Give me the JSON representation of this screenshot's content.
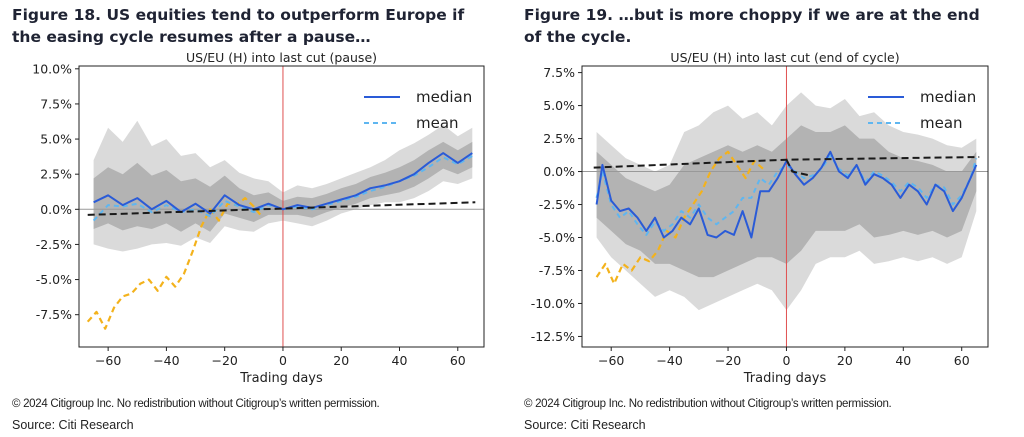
{
  "panels": [
    {
      "figure_title": "Figure 18. US equities tend to outperform Europe if the easing cycle resumes after a pause…",
      "copyright": "© 2024 Citigroup Inc. No redistribution without Citigroup’s written permission.",
      "source": "Source: Citi Research"
    },
    {
      "figure_title": "Figure 19. …but is more choppy if we are at the end of the cycle.",
      "copyright": "© 2024 Citigroup Inc. No redistribution without Citigroup’s written permission.",
      "source": "Source: Citi Research"
    }
  ],
  "colors": {
    "median": "#2a5bd7",
    "mean": "#5fb6f0",
    "y2024": "#f3b21c",
    "trend": "#1a1a1a",
    "zero_line": "#999999",
    "vline": "#e05050",
    "band_outer": "#d4d4d4",
    "band_inner": "#a9a9a9"
  },
  "chart_data": [
    {
      "type": "line",
      "title": "US/EU (H) into last cut (pause)",
      "xlabel": "Trading days",
      "ylabel": "",
      "xlim": [
        -70,
        69
      ],
      "ylim": [
        -9.8,
        10.2
      ],
      "xticks": [
        -60,
        -40,
        -20,
        0,
        20,
        40,
        60
      ],
      "xtick_labels": [
        "−60",
        "−40",
        "−20",
        "0",
        "20",
        "40",
        "60"
      ],
      "yticks": [
        -7.5,
        -5,
        -2.5,
        0,
        2.5,
        5,
        7.5,
        10
      ],
      "ytick_labels": [
        "-7.5%",
        "-5.0%",
        "-2.5%",
        "0.0%",
        "2.5%",
        "5.0%",
        "7.5%",
        "10.0%"
      ],
      "legend": {
        "position": "top-right",
        "entries": [
          {
            "label": "median",
            "style": "solid",
            "color": "#2a5bd7"
          },
          {
            "label": "mean",
            "style": "dashed",
            "color": "#5fb6f0"
          }
        ]
      },
      "series": [
        {
          "name": "median",
          "style": "solid",
          "x": [
            -65,
            -60,
            -55,
            -50,
            -45,
            -40,
            -35,
            -30,
            -25,
            -20,
            -15,
            -10,
            -5,
            0,
            5,
            10,
            15,
            20,
            25,
            30,
            35,
            40,
            45,
            50,
            55,
            60,
            65
          ],
          "y": [
            0.5,
            1.0,
            0.3,
            0.8,
            0.0,
            0.6,
            -0.2,
            0.4,
            -0.3,
            1.0,
            0.3,
            0.0,
            0.4,
            0.0,
            0.3,
            0.1,
            0.4,
            0.7,
            1.0,
            1.5,
            1.7,
            2.0,
            2.5,
            3.3,
            4.0,
            3.3,
            4.0
          ]
        },
        {
          "name": "mean",
          "style": "dashed",
          "x": [
            -65,
            -60,
            -55,
            -50,
            -45,
            -40,
            -35,
            -30,
            -25,
            -20,
            -15,
            -10,
            -5,
            0,
            5,
            10,
            15,
            20,
            25,
            30,
            35,
            40,
            45,
            50,
            55,
            60,
            65
          ],
          "y": [
            -0.8,
            0.3,
            0.2,
            0.4,
            -0.2,
            0.3,
            -0.2,
            0.0,
            -0.5,
            0.6,
            0.2,
            -0.2,
            0.3,
            0.0,
            0.2,
            0.0,
            0.3,
            0.6,
            0.9,
            1.3,
            1.6,
            2.0,
            2.4,
            3.0,
            3.7,
            3.2,
            3.8
          ]
        },
        {
          "name": "",
          "style": "dashed-orange",
          "x": [
            -67,
            -64,
            -61,
            -58,
            -55,
            -52,
            -49,
            -46,
            -43,
            -40,
            -37,
            -34,
            -31,
            -28,
            -25,
            -22,
            -19,
            -16,
            -13,
            -10,
            -7
          ],
          "y": [
            -8.0,
            -7.3,
            -8.5,
            -7.0,
            -6.2,
            -6.0,
            -5.3,
            -5.0,
            -5.8,
            -4.8,
            -5.5,
            -4.6,
            -3.0,
            -1.2,
            0.0,
            -0.8,
            0.4,
            0.3,
            0.8,
            0.2,
            -0.6
          ]
        },
        {
          "name": "",
          "style": "trend",
          "x": [
            -67,
            66
          ],
          "y": [
            -0.4,
            0.5
          ]
        }
      ],
      "bands": {
        "x": [
          -65,
          -60,
          -55,
          -50,
          -45,
          -40,
          -35,
          -30,
          -25,
          -20,
          -15,
          -10,
          -5,
          0,
          5,
          10,
          15,
          20,
          25,
          30,
          35,
          40,
          45,
          50,
          55,
          60,
          65
        ],
        "outer_upper": [
          3.5,
          5.8,
          4.8,
          6.3,
          4.5,
          5.0,
          3.8,
          4.0,
          3.0,
          3.5,
          2.6,
          2.2,
          2.0,
          1.2,
          1.7,
          1.5,
          1.8,
          2.2,
          2.6,
          3.0,
          3.5,
          4.2,
          4.7,
          5.3,
          6.0,
          5.2,
          5.8
        ],
        "outer_lower": [
          -2.5,
          -2.8,
          -3.0,
          -2.8,
          -2.5,
          -2.4,
          -2.6,
          -2.0,
          -2.4,
          -1.2,
          -1.5,
          -1.6,
          -1.0,
          -0.8,
          -1.0,
          -1.2,
          -0.8,
          -0.3,
          0.0,
          0.3,
          0.5,
          0.5,
          0.8,
          1.3,
          2.0,
          1.8,
          2.2
        ],
        "inner_upper": [
          2.2,
          3.0,
          2.5,
          3.3,
          2.4,
          2.8,
          2.0,
          2.2,
          1.6,
          2.4,
          1.5,
          1.0,
          1.2,
          0.6,
          0.9,
          0.8,
          1.1,
          1.5,
          1.8,
          2.3,
          2.6,
          3.0,
          3.5,
          4.2,
          4.8,
          4.2,
          4.8
        ],
        "inner_lower": [
          -1.4,
          -1.0,
          -1.5,
          -1.2,
          -1.4,
          -1.0,
          -1.6,
          -1.0,
          -1.6,
          -0.3,
          -0.6,
          -0.9,
          -0.4,
          -0.4,
          -0.4,
          -0.6,
          -0.2,
          0.1,
          0.4,
          0.8,
          1.0,
          1.2,
          1.6,
          2.2,
          2.9,
          2.5,
          3.0
        ]
      },
      "zero_line": 0,
      "vertical_line_x": 0
    },
    {
      "type": "line",
      "title": "US/EU (H) into last cut (end of cycle)",
      "xlabel": "Trading days",
      "ylabel": "",
      "xlim": [
        -70,
        69
      ],
      "ylim": [
        -13.3,
        8.0
      ],
      "xticks": [
        -60,
        -40,
        -20,
        0,
        20,
        40,
        60
      ],
      "xtick_labels": [
        "−60",
        "−40",
        "−20",
        "0",
        "20",
        "40",
        "60"
      ],
      "yticks": [
        -12.5,
        -10,
        -7.5,
        -5,
        -2.5,
        0,
        2.5,
        5,
        7.5
      ],
      "ytick_labels": [
        "-12.5%",
        "-10.0%",
        "-7.5%",
        "-5.0%",
        "-2.5%",
        "0.0%",
        "2.5%",
        "5.0%",
        "7.5%"
      ],
      "legend": {
        "position": "top-right",
        "entries": [
          {
            "label": "median",
            "style": "solid",
            "color": "#2a5bd7"
          },
          {
            "label": "mean",
            "style": "dashed",
            "color": "#5fb6f0"
          }
        ]
      },
      "series": [
        {
          "name": "median",
          "style": "solid",
          "x": [
            -65,
            -63,
            -60,
            -57,
            -54,
            -51,
            -48,
            -45,
            -42,
            -39,
            -36,
            -33,
            -30,
            -27,
            -24,
            -21,
            -18,
            -15,
            -12,
            -9,
            -6,
            -3,
            0,
            3,
            6,
            9,
            12,
            15,
            18,
            21,
            24,
            27,
            30,
            33,
            36,
            39,
            42,
            45,
            48,
            51,
            54,
            57,
            60,
            63,
            65
          ],
          "y": [
            -2.5,
            0.5,
            -2.2,
            -3.0,
            -2.8,
            -3.5,
            -4.5,
            -3.5,
            -5.0,
            -4.5,
            -3.5,
            -4.0,
            -2.8,
            -4.8,
            -5.0,
            -4.5,
            -4.8,
            -3.0,
            -5.0,
            -1.5,
            -1.5,
            -0.5,
            0.8,
            -0.2,
            -1.0,
            -0.5,
            0.3,
            1.5,
            0.0,
            -0.5,
            0.5,
            -1.0,
            -0.2,
            -0.5,
            -1.0,
            -2.0,
            -1.0,
            -1.5,
            -2.5,
            -1.0,
            -1.5,
            -3.0,
            -2.0,
            -0.5,
            0.5
          ]
        },
        {
          "name": "mean",
          "style": "dashed",
          "x": [
            -65,
            -63,
            -60,
            -57,
            -54,
            -51,
            -48,
            -45,
            -42,
            -39,
            -36,
            -33,
            -30,
            -27,
            -24,
            -21,
            -18,
            -15,
            -12,
            -9,
            -6,
            -3,
            0,
            3,
            6,
            9,
            12,
            15,
            18,
            21,
            24,
            27,
            30,
            33,
            36,
            39,
            42,
            45,
            48,
            51,
            54,
            57,
            60,
            63,
            65
          ],
          "y": [
            -2.0,
            0.0,
            -2.5,
            -3.5,
            -3.0,
            -4.0,
            -4.8,
            -3.8,
            -4.5,
            -4.0,
            -3.0,
            -3.5,
            -2.5,
            -3.5,
            -4.0,
            -3.5,
            -3.0,
            -2.0,
            -2.0,
            -0.5,
            -1.0,
            0.0,
            0.5,
            0.0,
            -0.5,
            -0.3,
            0.2,
            1.2,
            0.2,
            -0.3,
            0.5,
            -0.8,
            0.0,
            -0.3,
            -0.8,
            -1.5,
            -0.8,
            -1.2,
            -2.0,
            -1.0,
            -1.2,
            -2.5,
            -1.8,
            -0.5,
            1.0
          ]
        },
        {
          "name": "",
          "style": "dashed-orange",
          "x": [
            -65,
            -62,
            -59,
            -56,
            -53,
            -50,
            -47,
            -44,
            -41,
            -38,
            -35,
            -32,
            -29,
            -26,
            -23,
            -20,
            -17,
            -14,
            -11,
            -8
          ],
          "y": [
            -8.0,
            -7.0,
            -8.5,
            -7.0,
            -7.5,
            -6.5,
            -6.8,
            -6.0,
            -4.5,
            -5.0,
            -3.5,
            -2.5,
            -1.5,
            0.0,
            1.0,
            1.5,
            0.5,
            -0.5,
            0.8,
            0.2
          ]
        },
        {
          "name": "",
          "style": "trend",
          "x": [
            -66,
            0,
            66
          ],
          "y": [
            0.3,
            0.9,
            1.1
          ]
        },
        {
          "name": "",
          "style": "trend",
          "x": [
            0,
            2,
            8
          ],
          "y": [
            0.9,
            0.0,
            -0.3
          ]
        }
      ],
      "bands": {
        "x": [
          -65,
          -60,
          -55,
          -50,
          -45,
          -40,
          -35,
          -30,
          -25,
          -20,
          -15,
          -10,
          -5,
          0,
          5,
          10,
          15,
          20,
          25,
          30,
          35,
          40,
          45,
          50,
          55,
          60,
          65
        ],
        "outer_upper": [
          3.0,
          2.0,
          1.0,
          0.5,
          0.0,
          0.5,
          3.0,
          3.5,
          4.5,
          5.0,
          4.0,
          4.5,
          3.5,
          5.0,
          6.0,
          5.0,
          4.8,
          5.5,
          4.2,
          4.5,
          3.5,
          3.0,
          2.8,
          2.5,
          2.0,
          1.8,
          2.5
        ],
        "outer_lower": [
          -5.0,
          -6.5,
          -7.5,
          -8.5,
          -9.5,
          -9.0,
          -9.5,
          -10.5,
          -10.0,
          -9.5,
          -9.0,
          -8.5,
          -9.0,
          -10.5,
          -9.0,
          -7.0,
          -6.5,
          -6.5,
          -6.0,
          -7.0,
          -6.8,
          -6.5,
          -6.8,
          -6.5,
          -7.0,
          -6.5,
          -3.0
        ],
        "inner_upper": [
          1.5,
          0.5,
          -0.5,
          -1.0,
          -1.5,
          -1.0,
          0.5,
          1.0,
          1.5,
          2.0,
          1.5,
          2.0,
          1.5,
          2.5,
          3.5,
          3.0,
          3.0,
          3.5,
          2.5,
          2.5,
          1.5,
          1.0,
          0.8,
          0.5,
          0.0,
          0.0,
          1.5
        ],
        "inner_lower": [
          -3.5,
          -4.5,
          -5.5,
          -6.0,
          -7.0,
          -7.0,
          -7.5,
          -8.0,
          -8.0,
          -7.5,
          -7.0,
          -6.5,
          -6.5,
          -7.0,
          -6.0,
          -4.5,
          -4.5,
          -4.5,
          -4.0,
          -5.0,
          -4.8,
          -4.5,
          -4.8,
          -4.5,
          -5.0,
          -4.5,
          -1.5
        ]
      },
      "zero_line": 0,
      "vertical_line_x": 0
    }
  ]
}
